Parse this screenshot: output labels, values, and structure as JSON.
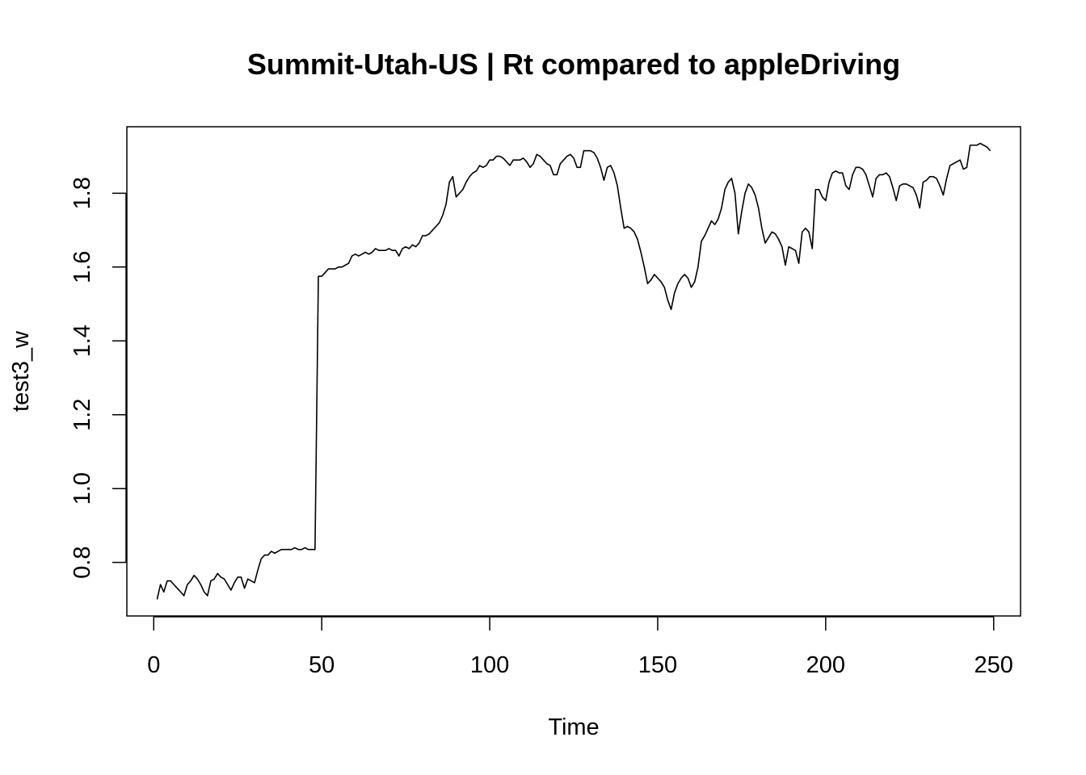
{
  "chart_data": {
    "type": "line",
    "title": "Summit-Utah-US | Rt compared to appleDriving",
    "xlabel": "Time",
    "ylabel": "test3_w",
    "xlim": [
      -8,
      258
    ],
    "ylim": [
      0.655,
      1.98
    ],
    "x_ticks": [
      0,
      50,
      100,
      150,
      200,
      250
    ],
    "y_ticks": [
      0.8,
      1.0,
      1.2,
      1.4,
      1.6,
      1.8
    ],
    "grid": false,
    "legend": "none",
    "line_color": "#000000",
    "points": [
      [
        1,
        0.7
      ],
      [
        2,
        0.74
      ],
      [
        3,
        0.72
      ],
      [
        4,
        0.75
      ],
      [
        5,
        0.75
      ],
      [
        6,
        0.74
      ],
      [
        7,
        0.73
      ],
      [
        8,
        0.72
      ],
      [
        9,
        0.71
      ],
      [
        10,
        0.74
      ],
      [
        11,
        0.75
      ],
      [
        12,
        0.765
      ],
      [
        13,
        0.755
      ],
      [
        14,
        0.74
      ],
      [
        15,
        0.72
      ],
      [
        16,
        0.71
      ],
      [
        17,
        0.75
      ],
      [
        18,
        0.755
      ],
      [
        19,
        0.77
      ],
      [
        20,
        0.76
      ],
      [
        21,
        0.755
      ],
      [
        22,
        0.74
      ],
      [
        23,
        0.725
      ],
      [
        24,
        0.745
      ],
      [
        25,
        0.76
      ],
      [
        26,
        0.76
      ],
      [
        27,
        0.73
      ],
      [
        28,
        0.755
      ],
      [
        29,
        0.75
      ],
      [
        30,
        0.745
      ],
      [
        31,
        0.78
      ],
      [
        32,
        0.81
      ],
      [
        33,
        0.82
      ],
      [
        34,
        0.82
      ],
      [
        35,
        0.83
      ],
      [
        36,
        0.825
      ],
      [
        37,
        0.83
      ],
      [
        38,
        0.835
      ],
      [
        39,
        0.835
      ],
      [
        40,
        0.835
      ],
      [
        41,
        0.835
      ],
      [
        42,
        0.84
      ],
      [
        43,
        0.835
      ],
      [
        44,
        0.835
      ],
      [
        45,
        0.84
      ],
      [
        46,
        0.835
      ],
      [
        47,
        0.835
      ],
      [
        48,
        0.835
      ],
      [
        48.5,
        1.2
      ],
      [
        49,
        1.575
      ],
      [
        50,
        1.575
      ],
      [
        51,
        1.585
      ],
      [
        52,
        1.595
      ],
      [
        53,
        1.595
      ],
      [
        54,
        1.595
      ],
      [
        55,
        1.6
      ],
      [
        56,
        1.6
      ],
      [
        57,
        1.605
      ],
      [
        58,
        1.61
      ],
      [
        59,
        1.63
      ],
      [
        60,
        1.635
      ],
      [
        61,
        1.63
      ],
      [
        62,
        1.635
      ],
      [
        63,
        1.64
      ],
      [
        64,
        1.635
      ],
      [
        65,
        1.64
      ],
      [
        66,
        1.65
      ],
      [
        67,
        1.645
      ],
      [
        68,
        1.645
      ],
      [
        69,
        1.645
      ],
      [
        70,
        1.65
      ],
      [
        71,
        1.645
      ],
      [
        72,
        1.645
      ],
      [
        73,
        1.63
      ],
      [
        74,
        1.65
      ],
      [
        75,
        1.655
      ],
      [
        76,
        1.65
      ],
      [
        77,
        1.66
      ],
      [
        78,
        1.655
      ],
      [
        79,
        1.665
      ],
      [
        80,
        1.685
      ],
      [
        81,
        1.685
      ],
      [
        82,
        1.69
      ],
      [
        83,
        1.7
      ],
      [
        84,
        1.71
      ],
      [
        85,
        1.72
      ],
      [
        86,
        1.74
      ],
      [
        87,
        1.77
      ],
      [
        88,
        1.83
      ],
      [
        89,
        1.845
      ],
      [
        90,
        1.79
      ],
      [
        91,
        1.8
      ],
      [
        92,
        1.81
      ],
      [
        93,
        1.83
      ],
      [
        94,
        1.845
      ],
      [
        95,
        1.855
      ],
      [
        96,
        1.86
      ],
      [
        97,
        1.875
      ],
      [
        98,
        1.87
      ],
      [
        99,
        1.875
      ],
      [
        100,
        1.89
      ],
      [
        101,
        1.89
      ],
      [
        102,
        1.9
      ],
      [
        103,
        1.9
      ],
      [
        104,
        1.895
      ],
      [
        105,
        1.885
      ],
      [
        106,
        1.875
      ],
      [
        107,
        1.89
      ],
      [
        108,
        1.89
      ],
      [
        109,
        1.89
      ],
      [
        110,
        1.895
      ],
      [
        111,
        1.885
      ],
      [
        112,
        1.87
      ],
      [
        113,
        1.88
      ],
      [
        114,
        1.905
      ],
      [
        115,
        1.9
      ],
      [
        116,
        1.89
      ],
      [
        117,
        1.88
      ],
      [
        118,
        1.875
      ],
      [
        119,
        1.85
      ],
      [
        120,
        1.85
      ],
      [
        121,
        1.88
      ],
      [
        122,
        1.89
      ],
      [
        123,
        1.9
      ],
      [
        124,
        1.905
      ],
      [
        125,
        1.895
      ],
      [
        126,
        1.87
      ],
      [
        127,
        1.87
      ],
      [
        128,
        1.915
      ],
      [
        129,
        1.915
      ],
      [
        130,
        1.915
      ],
      [
        131,
        1.91
      ],
      [
        132,
        1.895
      ],
      [
        133,
        1.87
      ],
      [
        134,
        1.835
      ],
      [
        135,
        1.87
      ],
      [
        136,
        1.875
      ],
      [
        137,
        1.855
      ],
      [
        138,
        1.82
      ],
      [
        139,
        1.76
      ],
      [
        140,
        1.705
      ],
      [
        141,
        1.71
      ],
      [
        142,
        1.705
      ],
      [
        143,
        1.695
      ],
      [
        144,
        1.675
      ],
      [
        145,
        1.64
      ],
      [
        146,
        1.6
      ],
      [
        147,
        1.555
      ],
      [
        148,
        1.565
      ],
      [
        149,
        1.58
      ],
      [
        150,
        1.57
      ],
      [
        151,
        1.56
      ],
      [
        152,
        1.545
      ],
      [
        153,
        1.51
      ],
      [
        154,
        1.485
      ],
      [
        155,
        1.53
      ],
      [
        156,
        1.555
      ],
      [
        157,
        1.57
      ],
      [
        158,
        1.58
      ],
      [
        159,
        1.57
      ],
      [
        160,
        1.545
      ],
      [
        161,
        1.56
      ],
      [
        162,
        1.6
      ],
      [
        163,
        1.67
      ],
      [
        164,
        1.685
      ],
      [
        165,
        1.705
      ],
      [
        166,
        1.725
      ],
      [
        167,
        1.715
      ],
      [
        168,
        1.73
      ],
      [
        169,
        1.76
      ],
      [
        170,
        1.81
      ],
      [
        171,
        1.83
      ],
      [
        172,
        1.84
      ],
      [
        173,
        1.8
      ],
      [
        174,
        1.69
      ],
      [
        175,
        1.75
      ],
      [
        176,
        1.8
      ],
      [
        177,
        1.825
      ],
      [
        178,
        1.815
      ],
      [
        179,
        1.795
      ],
      [
        180,
        1.76
      ],
      [
        181,
        1.705
      ],
      [
        182,
        1.665
      ],
      [
        183,
        1.68
      ],
      [
        184,
        1.695
      ],
      [
        185,
        1.69
      ],
      [
        186,
        1.675
      ],
      [
        187,
        1.655
      ],
      [
        188,
        1.605
      ],
      [
        189,
        1.655
      ],
      [
        190,
        1.65
      ],
      [
        191,
        1.645
      ],
      [
        192,
        1.61
      ],
      [
        193,
        1.695
      ],
      [
        194,
        1.705
      ],
      [
        195,
        1.695
      ],
      [
        196,
        1.65
      ],
      [
        197,
        1.81
      ],
      [
        198,
        1.81
      ],
      [
        199,
        1.79
      ],
      [
        200,
        1.78
      ],
      [
        201,
        1.83
      ],
      [
        202,
        1.855
      ],
      [
        203,
        1.86
      ],
      [
        204,
        1.855
      ],
      [
        205,
        1.855
      ],
      [
        206,
        1.82
      ],
      [
        207,
        1.81
      ],
      [
        208,
        1.85
      ],
      [
        209,
        1.87
      ],
      [
        210,
        1.87
      ],
      [
        211,
        1.865
      ],
      [
        212,
        1.85
      ],
      [
        213,
        1.82
      ],
      [
        214,
        1.79
      ],
      [
        215,
        1.84
      ],
      [
        216,
        1.85
      ],
      [
        217,
        1.85
      ],
      [
        218,
        1.855
      ],
      [
        219,
        1.845
      ],
      [
        220,
        1.815
      ],
      [
        221,
        1.78
      ],
      [
        222,
        1.82
      ],
      [
        223,
        1.825
      ],
      [
        224,
        1.825
      ],
      [
        225,
        1.82
      ],
      [
        226,
        1.815
      ],
      [
        227,
        1.795
      ],
      [
        228,
        1.76
      ],
      [
        229,
        1.83
      ],
      [
        230,
        1.835
      ],
      [
        231,
        1.845
      ],
      [
        232,
        1.845
      ],
      [
        233,
        1.84
      ],
      [
        234,
        1.82
      ],
      [
        235,
        1.795
      ],
      [
        236,
        1.84
      ],
      [
        237,
        1.875
      ],
      [
        238,
        1.88
      ],
      [
        239,
        1.885
      ],
      [
        240,
        1.89
      ],
      [
        241,
        1.865
      ],
      [
        242,
        1.87
      ],
      [
        243,
        1.93
      ],
      [
        244,
        1.93
      ],
      [
        245,
        1.93
      ],
      [
        246,
        1.935
      ],
      [
        247,
        1.93
      ],
      [
        248,
        1.925
      ],
      [
        249,
        1.915
      ]
    ]
  }
}
